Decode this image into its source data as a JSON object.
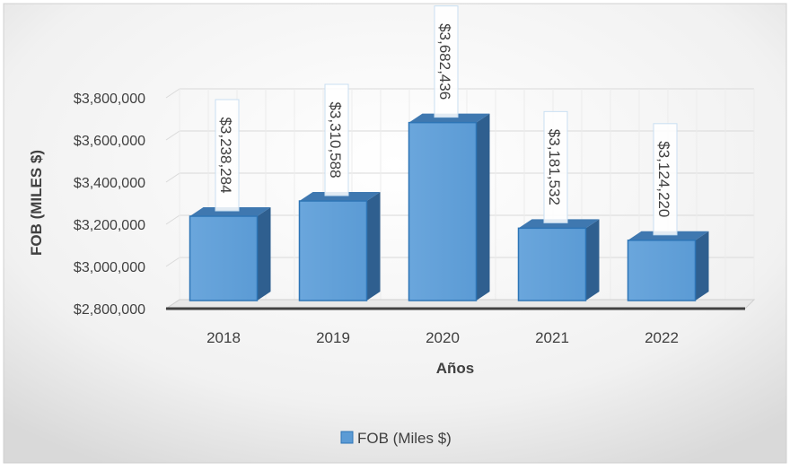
{
  "chart_data": {
    "type": "bar",
    "categories": [
      "2018",
      "2019",
      "2020",
      "2021",
      "2022"
    ],
    "series": [
      {
        "name": "FOB (Miles $)",
        "values": [
          3238284,
          3310588,
          3682436,
          3181532,
          3124220
        ]
      }
    ],
    "data_labels": [
      "$3,238,284",
      "$3,310,588",
      "$3,682,436",
      "$3,181,532",
      "$3,124,220"
    ],
    "title": "",
    "xlabel": "Años",
    "ylabel": "FOB (MILES $)",
    "ylim": [
      2800000,
      3800000
    ],
    "y_ticks": [
      2800000,
      3000000,
      3200000,
      3400000,
      3600000,
      3800000
    ],
    "y_tick_labels": [
      "$2,800,000",
      "$3,000,000",
      "$3,200,000",
      "$3,400,000",
      "$3,600,000",
      "$3,800,000"
    ],
    "grid": true,
    "legend": {
      "position": "bottom",
      "label": "FOB (Miles $)"
    },
    "colors": {
      "bar": "#5b9bd5",
      "bar_edge": "#2e75b6",
      "bar_side": "#2f5f8f",
      "floor": "#8c8c8c",
      "text": "#404040"
    }
  }
}
